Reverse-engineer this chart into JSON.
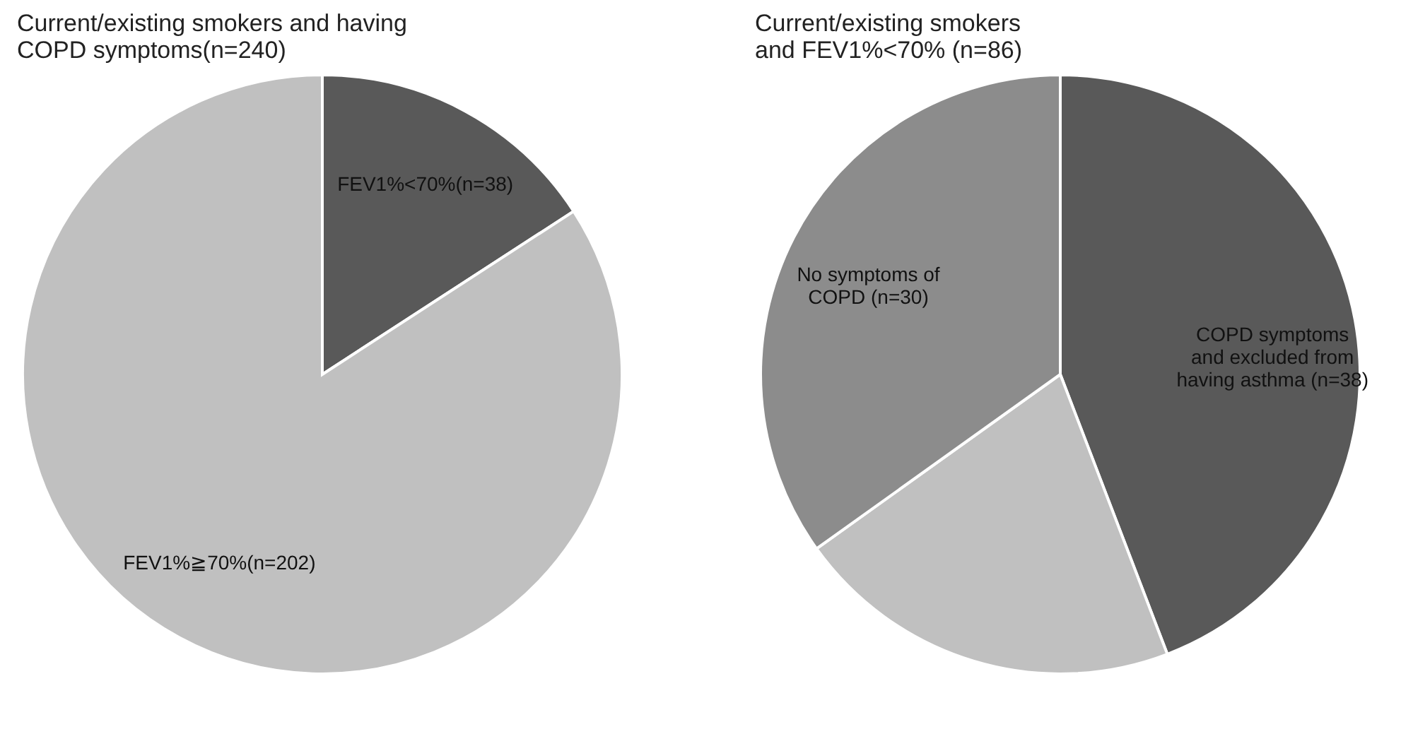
{
  "chart_data": [
    {
      "type": "pie",
      "title": "Current/existing smokers and having\nCOPD symptoms(n=240)",
      "categories": [
        "FEV1%<70%(n=38)",
        "FEV1%≧70%(n=202)"
      ],
      "values": [
        38,
        202
      ],
      "colors": [
        "#595959",
        "#c0c0c0"
      ],
      "legend": false
    },
    {
      "type": "pie",
      "title": "Current/existing smokers\nand FEV1%<70% (n=86)",
      "categories": [
        "COPD symptoms\nand excluded from\nhaving asthma (n=38)",
        null,
        "No symptoms of\nCOPD (n=30)"
      ],
      "values": [
        38,
        18,
        30
      ],
      "colors": [
        "#595959",
        "#c0c0c0",
        "#8c8c8c"
      ],
      "legend": false
    }
  ]
}
